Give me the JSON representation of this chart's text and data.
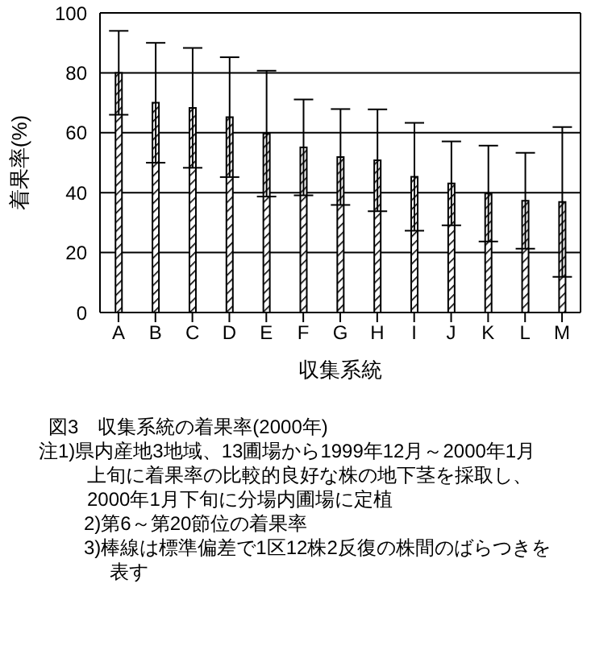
{
  "chart_data": {
    "type": "bar",
    "title": "図3　収集系統の着果率(2000年)",
    "xlabel": "収集系統",
    "ylabel": "着果率(%)",
    "categories": [
      "A",
      "B",
      "C",
      "D",
      "E",
      "F",
      "G",
      "H",
      "I",
      "J",
      "K",
      "L",
      "M"
    ],
    "values": [
      80,
      70,
      68.3,
      65.2,
      59.7,
      55.1,
      51.9,
      50.8,
      45.3,
      43.1,
      39.7,
      37.3,
      36.9
    ],
    "errors": [
      14,
      20,
      20,
      20,
      21,
      16,
      16,
      17,
      18,
      14,
      16,
      16,
      25
    ],
    "color": "#000000",
    "ylim": [
      0,
      100
    ],
    "yticks": [
      0,
      20,
      40,
      60,
      80,
      100
    ],
    "grid": "y",
    "annotations": [
      "注1)県内産地3地域、13圃場から1999年12月～2000年1月上旬に着果率の比較的良好な株の地下茎を採取し、2000年1月下旬に分場内圃場に定植",
      "2)第6～第20節位の着果率",
      "3)棒線は標準偏差で1区12株2反復の株間のばらつきを表す"
    ]
  }
}
